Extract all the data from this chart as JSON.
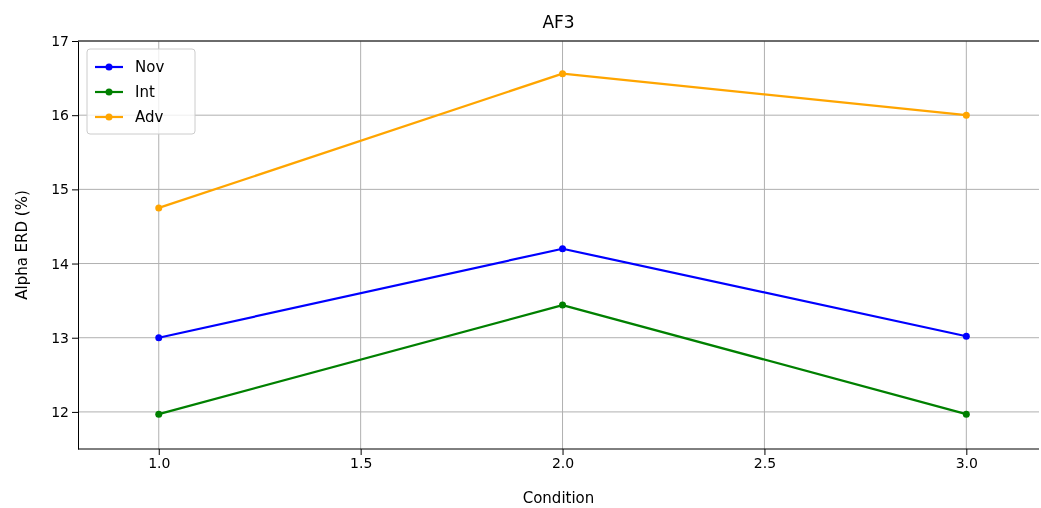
{
  "chart_data": {
    "type": "line",
    "title": "AF3",
    "xlabel": "Condition",
    "ylabel": "Alpha ERD (%)",
    "x": [
      1,
      2,
      3
    ],
    "series": [
      {
        "name": "Nov",
        "color": "#0000ff",
        "values": [
          13.0,
          14.2,
          13.02
        ]
      },
      {
        "name": "Int",
        "color": "#008000",
        "values": [
          11.97,
          13.44,
          11.97
        ]
      },
      {
        "name": "Adv",
        "color": "#ffa500",
        "values": [
          14.75,
          16.56,
          16.0
        ]
      }
    ],
    "xlim": [
      0.8,
      3.18
    ],
    "xticks": [
      {
        "value": 1,
        "label": "1.0"
      },
      {
        "value": 1.5,
        "label": "1.5"
      },
      {
        "value": 2,
        "label": "2.0"
      },
      {
        "value": 2.5,
        "label": "2.5"
      },
      {
        "value": 3,
        "label": "3.0"
      }
    ],
    "ylim": [
      11.5,
      17
    ],
    "yticks": [
      12,
      13,
      14,
      15,
      16,
      17
    ],
    "grid": true,
    "legend": "top left",
    "marker": "circle",
    "line_style": "solid"
  }
}
